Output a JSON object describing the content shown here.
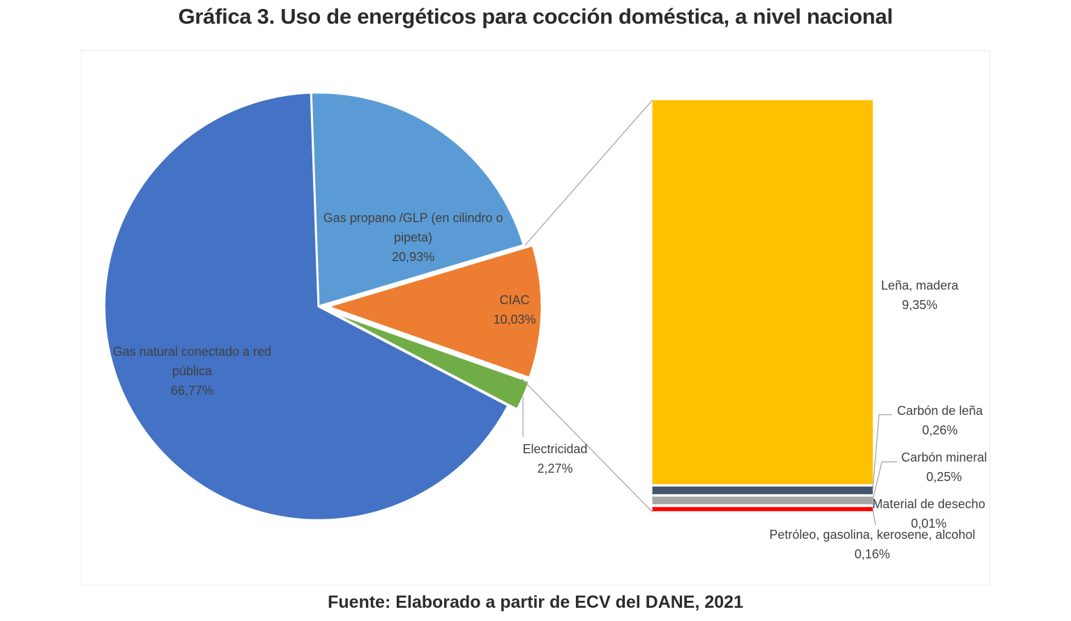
{
  "page": {
    "title": "Gráfica 3. Uso de energéticos para cocción doméstica, a nivel nacional",
    "source": "Fuente: Elaborado a partir de ECV del DANE, 2021"
  },
  "chart_data": {
    "type": "pie",
    "subtype": "bar-of-pie",
    "title": "Gráfica 3. Uso de energéticos para cocción doméstica, a nivel nacional",
    "value_unit": "%",
    "legend_position": "none",
    "grid": false,
    "pie_series": [
      {
        "label": "Gas natural conectado a red pública",
        "value": 66.77,
        "display": "66,77%",
        "color": "#4472C4"
      },
      {
        "label": "Gas propano /GLP (en cilindro o pipeta)",
        "value": 20.93,
        "display": "20,93%",
        "color": "#5B9BD5"
      },
      {
        "label": "CIAC",
        "value": 10.03,
        "display": "10,03%",
        "color": "#ED7D31"
      },
      {
        "label": "Electricidad",
        "value": 2.27,
        "display": "2,27%",
        "color": "#70AD47"
      }
    ],
    "bar_series": [
      {
        "label": "Leña, madera",
        "value": 9.35,
        "display": "9,35%",
        "color": "#FFC000"
      },
      {
        "label": "Carbón de leña",
        "value": 0.26,
        "display": "0,26%",
        "color": "#44546A"
      },
      {
        "label": "Carbón mineral",
        "value": 0.25,
        "display": "0,25%",
        "color": "#A5A5A5"
      },
      {
        "label": "Material de desecho",
        "value": 0.01,
        "display": "0,01%",
        "color": "#FFFFFF"
      },
      {
        "label": "Petróleo, gasolina, kerosene, alcohol",
        "value": 0.16,
        "display": "0,16%",
        "color": "#FF0000"
      }
    ]
  }
}
